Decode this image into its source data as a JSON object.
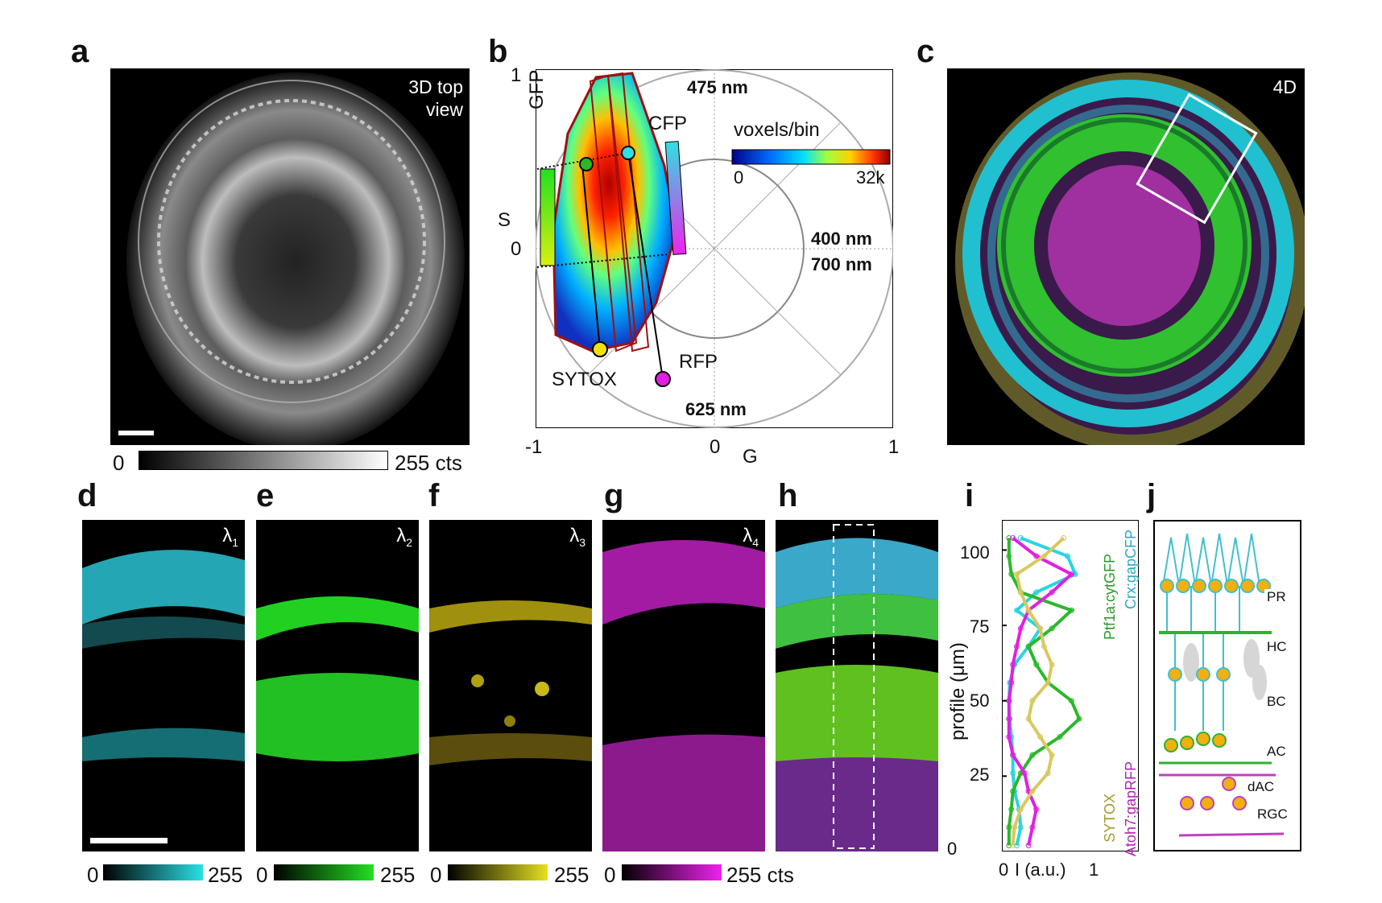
{
  "panels": {
    "a": {
      "letter": "a",
      "overlay": "3D top\nview",
      "cbar_min": "0",
      "cbar_max": "255 cts"
    },
    "b": {
      "letter": "b",
      "ylabel": "S",
      "xlabel": "G",
      "x_ticks": [
        "-1",
        "0",
        "1"
      ],
      "y_ticks": [
        "1",
        "0"
      ],
      "wl_labels": {
        "w475": "475 nm",
        "w400": "400 nm",
        "w700": "700 nm",
        "w625": "625 nm"
      },
      "probe_labels": {
        "gfp": "GFP",
        "cfp": "CFP",
        "sytox": "SYTOX",
        "rfp": "RFP"
      },
      "colorbar": {
        "title": "voxels/bin",
        "min": "0",
        "max": "32k"
      },
      "colors": {
        "w475": "#2b6fb0",
        "w400": "#6b3fa0",
        "w700": "#a01010",
        "w625": "#c0202a"
      }
    },
    "c": {
      "letter": "c",
      "overlay": "4D"
    },
    "d": {
      "letter": "d",
      "lambda": "λ",
      "sub": "1",
      "cbar_min": "0",
      "cbar_max": "255",
      "color": "#29e0e6"
    },
    "e": {
      "letter": "e",
      "lambda": "λ",
      "sub": "2",
      "cbar_min": "0",
      "cbar_max": "255",
      "color": "#22e022"
    },
    "f": {
      "letter": "f",
      "lambda": "λ",
      "sub": "3",
      "cbar_min": "0",
      "cbar_max": "255",
      "color": "#e6e020"
    },
    "g": {
      "letter": "g",
      "lambda": "λ",
      "sub": "4",
      "cbar_min": "0",
      "cbar_max": "255 cts",
      "color": "#ee22ee"
    },
    "h": {
      "letter": "h"
    },
    "i": {
      "letter": "i",
      "ylabel": "profile (μm)",
      "xlabel": "I (a.u.)",
      "x_ticks": [
        "0",
        "1"
      ],
      "y_ticks": [
        "0",
        "25",
        "50",
        "75",
        "100"
      ],
      "legend": [
        "Crx:gapCFP",
        "Ptf1a:cytGFP",
        "Atoh7:gapRFP",
        "SYTOX"
      ]
    },
    "j": {
      "letter": "j",
      "labels": [
        "PR",
        "HC",
        "BC",
        "AC",
        "dAC",
        "RGC"
      ]
    }
  },
  "chart_data": {
    "type": "line",
    "title": "",
    "xlabel": "I (a.u.)",
    "ylabel": "profile (μm)",
    "xlim": [
      0,
      1.3
    ],
    "ylim": [
      0,
      110
    ],
    "series": [
      {
        "name": "Crx:gapCFP",
        "color": "#29d4e0",
        "y": [
          2,
          8,
          14,
          20,
          26,
          32,
          38,
          44,
          50,
          56,
          62,
          68,
          74,
          80,
          86,
          92,
          98,
          104
        ],
        "x": [
          0.15,
          0.2,
          0.18,
          0.12,
          0.1,
          0.1,
          0.08,
          0.06,
          0.05,
          0.06,
          0.12,
          0.3,
          0.45,
          0.15,
          0.4,
          0.9,
          0.8,
          0.2
        ]
      },
      {
        "name": "Ptf1a:cytGFP",
        "color": "#2ab82a",
        "y": [
          2,
          8,
          14,
          20,
          26,
          32,
          38,
          44,
          50,
          56,
          62,
          68,
          74,
          80,
          86,
          92,
          98,
          104
        ],
        "x": [
          0.05,
          0.05,
          0.08,
          0.1,
          0.2,
          0.35,
          0.7,
          0.95,
          0.85,
          0.55,
          0.4,
          0.3,
          0.6,
          0.85,
          0.2,
          0.08,
          0.05,
          0.05
        ]
      },
      {
        "name": "Atoh7:gapRFP",
        "color": "#e020e0",
        "y": [
          2,
          8,
          14,
          20,
          26,
          32,
          38,
          44,
          50,
          56,
          62,
          68,
          74,
          80,
          86,
          92,
          98,
          104
        ],
        "x": [
          0.3,
          0.35,
          0.4,
          0.3,
          0.25,
          0.1,
          0.05,
          0.05,
          0.05,
          0.08,
          0.1,
          0.15,
          0.2,
          0.3,
          0.6,
          0.85,
          0.4,
          0.1
        ]
      },
      {
        "name": "SYTOX",
        "color": "#d8c860",
        "y": [
          2,
          8,
          14,
          20,
          26,
          32,
          38,
          44,
          50,
          56,
          62,
          68,
          74,
          80,
          86,
          92,
          98,
          104
        ],
        "x": [
          0.1,
          0.12,
          0.2,
          0.35,
          0.55,
          0.6,
          0.45,
          0.3,
          0.35,
          0.55,
          0.6,
          0.5,
          0.45,
          0.3,
          0.2,
          0.15,
          0.5,
          0.75
        ]
      }
    ]
  }
}
